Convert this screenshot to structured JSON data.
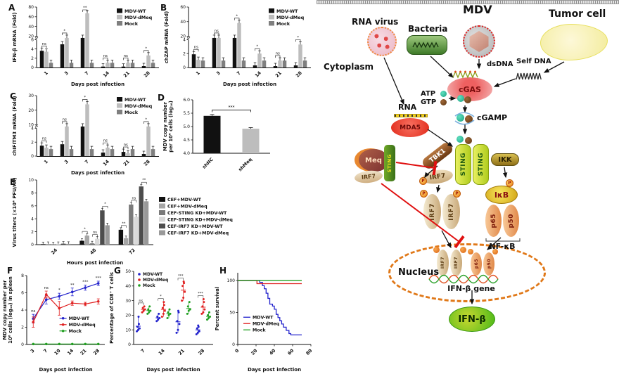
{
  "chart_data": [
    {
      "letter": "A",
      "type": "bar-broken",
      "ylabel": [
        "IFN-β mRNA (Fold)"
      ],
      "xlabel": "Days post infection",
      "categories": [
        "1",
        "3",
        "7",
        "14",
        "21",
        "28"
      ],
      "series": [
        {
          "name": "MDV-WT",
          "color": "#111111",
          "values": [
            3.6,
            5.0,
            13,
            0.2,
            0.2,
            0.3
          ]
        },
        {
          "name": "MDV-dMeq",
          "color": "#bdbdbd",
          "values": [
            3.4,
            10,
            67,
            1.0,
            1.0,
            2.6
          ]
        },
        {
          "name": "Mock",
          "color": "#7f7f7f",
          "values": [
            1,
            1,
            1,
            1,
            1,
            1
          ]
        }
      ],
      "sig": [
        "ns",
        "*",
        "**",
        "ns",
        "ns",
        "*"
      ],
      "axis_break": {
        "lower": [
          0,
          6
        ],
        "lower_ticks": [
          0,
          2,
          4,
          6
        ],
        "upper": [
          20,
          80
        ],
        "upper_ticks": [
          20,
          40,
          60,
          80
        ]
      }
    },
    {
      "letter": "B",
      "type": "bar-broken",
      "ylabel": [
        "chZAP mRNA (Fold)"
      ],
      "xlabel": "Days post infection",
      "categories": [
        "1",
        "3",
        "7",
        "14",
        "21",
        "28"
      ],
      "series": [
        {
          "name": "MDV-WT",
          "color": "#111111",
          "values": [
            1.9,
            10,
            13,
            0.3,
            0.2,
            0.3
          ]
        },
        {
          "name": "MDV-dMeq",
          "color": "#bdbdbd",
          "values": [
            1.1,
            12,
            38,
            2.0,
            1.0,
            3.3
          ]
        },
        {
          "name": "Mock",
          "color": "#7f7f7f",
          "values": [
            1,
            1,
            1,
            1,
            1,
            1
          ]
        }
      ],
      "sig": [
        "ns",
        "ns",
        "*",
        "*",
        "ns",
        "*"
      ],
      "axis_break": {
        "lower": [
          0,
          4
        ],
        "lower_ticks": [
          0,
          2,
          4
        ],
        "upper": [
          20,
          60
        ],
        "upper_ticks": [
          20,
          40,
          60
        ]
      }
    },
    {
      "letter": "C",
      "type": "bar-broken",
      "ylabel": [
        "chIFITM3 mRNA (Fold)"
      ],
      "xlabel": "Days post infection",
      "categories": [
        "1",
        "3",
        "7",
        "14",
        "21",
        "28"
      ],
      "series": [
        {
          "name": "MDV-WT",
          "color": "#111111",
          "values": [
            1.5,
            1.7,
            6.5,
            0.5,
            0.6,
            0.3
          ]
        },
        {
          "name": "MDV-dMeq",
          "color": "#bdbdbd",
          "values": [
            1.2,
            7.0,
            24,
            1.2,
            0.4,
            5.0
          ]
        },
        {
          "name": "Mock",
          "color": "#7f7f7f",
          "values": [
            1,
            1,
            1,
            1,
            1,
            1
          ]
        }
      ],
      "sig": [
        "ns",
        "ns",
        "*",
        "ns",
        "ns",
        "*"
      ],
      "axis_break": {
        "lower": [
          0,
          4
        ],
        "lower_ticks": [
          0,
          2,
          4
        ],
        "upper": [
          10,
          30
        ],
        "upper_ticks": [
          10,
          20,
          30
        ]
      }
    },
    {
      "letter": "D",
      "type": "bar",
      "ylabel": [
        "MDV copy number",
        "per 10⁶ cells (log₁₀)"
      ],
      "categories": [
        "shNC",
        "shMeq"
      ],
      "values": [
        5.4,
        4.92
      ],
      "errors": [
        0.05,
        0.04
      ],
      "colors": [
        "#111111",
        "#bdbdbd"
      ],
      "ylim": [
        4,
        6
      ],
      "yticks": [
        "4.0",
        "4.5",
        "5.0",
        "5.5",
        "6.0"
      ],
      "sig": "***"
    },
    {
      "letter": "E",
      "type": "bar-grouped",
      "ylabel": [
        "Virus titers (×10⁴ PFU/ml)"
      ],
      "xlabel": "Hours post infection",
      "categories": [
        "24",
        "48",
        "72"
      ],
      "series": [
        {
          "name": "CEF+MDV-WT",
          "color": "#111111",
          "values": [
            0.08,
            0.6,
            2.3
          ]
        },
        {
          "name": "CEF+MDV-dMeq",
          "color": "#a6a6a6",
          "values": [
            0.1,
            1.4,
            1.0
          ]
        },
        {
          "name": "CEF-STING KD+MDV-WT",
          "color": "#7a7a7a",
          "values": [
            0.06,
            0.2,
            6.2
          ]
        },
        {
          "name": "CEF-STING KD+MDV-dMeq",
          "color": "#d9d9d9",
          "values": [
            0.1,
            0.9,
            4.3
          ]
        },
        {
          "name": "CEF-IRF7 KD+MDV-WT",
          "color": "#4d4d4d",
          "values": [
            0.15,
            5.3,
            9.0
          ]
        },
        {
          "name": "CEF-IRF7 KD+MDV-dMeq",
          "color": "#999999",
          "values": [
            0.12,
            3.0,
            6.7
          ]
        }
      ],
      "sig": [
        [],
        [
          "*",
          "ns",
          "*"
        ],
        [
          "**",
          "ns",
          "**"
        ]
      ],
      "ylim": [
        0,
        10
      ],
      "yticks": [
        0,
        2,
        4,
        6,
        8,
        10
      ]
    },
    {
      "letter": "F",
      "type": "line",
      "ylabel": [
        "MDV copy number per",
        "10⁶ cells (log₁₀) in spleen"
      ],
      "xlabel": "Days post infection",
      "categories": [
        "3",
        "7",
        "10",
        "14",
        "21",
        "28"
      ],
      "series": [
        {
          "name": "MDV-WT",
          "color": "#2222cc",
          "values": [
            3.0,
            5.2,
            5.6,
            6.1,
            6.6,
            7.1
          ],
          "err": [
            0.5,
            0.5,
            0.35,
            0.45,
            0.3,
            0.25
          ]
        },
        {
          "name": "MDV-dMeq",
          "color": "#e02020",
          "values": [
            2.6,
            5.8,
            4.2,
            4.8,
            4.7,
            5.0
          ],
          "err": [
            0.6,
            0.4,
            0.8,
            0.25,
            0.2,
            0.3
          ]
        },
        {
          "name": "Mock",
          "color": "#22a022",
          "values": [
            0.05,
            0.05,
            0.05,
            0.05,
            0.05,
            0.05
          ],
          "err": [
            0,
            0,
            0,
            0,
            0,
            0
          ]
        }
      ],
      "sig": [
        "ns",
        "ns",
        "*",
        "**",
        "***",
        "***"
      ],
      "ylim": [
        0,
        8
      ],
      "yticks": [
        0,
        2,
        4,
        6,
        8
      ]
    },
    {
      "letter": "G",
      "type": "scatter",
      "ylabel": [
        "Percentage of CD8⁺ T cells"
      ],
      "xlabel": "Days post infection",
      "categories": [
        "7",
        "14",
        "21",
        "28"
      ],
      "series": [
        {
          "name": "MDV-WT",
          "color": "#2222cc",
          "points": [
            [
              9,
              10,
              11,
              12,
              14,
              19
            ],
            [
              16,
              17,
              18,
              19,
              21
            ],
            [
              8,
              10,
              14,
              16,
              22,
              23
            ],
            [
              7,
              8,
              9,
              11,
              12,
              13
            ]
          ]
        },
        {
          "name": "MDV-dMeq",
          "color": "#e02020",
          "points": [
            [
              22,
              23,
              24,
              25,
              26
            ],
            [
              19,
              21,
              23,
              25,
              27,
              29
            ],
            [
              30,
              32,
              36,
              40,
              42,
              43
            ],
            [
              21,
              22,
              24,
              26,
              29,
              31
            ]
          ]
        },
        {
          "name": "Mock",
          "color": "#22a022",
          "points": [
            [
              21,
              22,
              23,
              24,
              26
            ],
            [
              18,
              20,
              21,
              22,
              24
            ],
            [
              21,
              23,
              24,
              26,
              29
            ],
            [
              17,
              18,
              19,
              20,
              22
            ]
          ]
        }
      ],
      "sig": [
        "ns",
        "*",
        "***",
        "***"
      ],
      "ylim": [
        0,
        50
      ],
      "yticks": [
        0,
        10,
        20,
        30,
        40,
        50
      ]
    },
    {
      "letter": "H",
      "type": "survival",
      "ylabel": [
        "Percent survival"
      ],
      "xlabel": "Days post infection",
      "xlim": [
        0,
        80
      ],
      "xticks": [
        0,
        20,
        40,
        60,
        80
      ],
      "ylim": [
        0,
        112
      ],
      "yticks": [
        0,
        50,
        100
      ],
      "series": [
        {
          "name": "MDV-WT",
          "color": "#2222cc",
          "steps": [
            [
              0,
              100
            ],
            [
              24,
              100
            ],
            [
              24,
              97
            ],
            [
              27,
              97
            ],
            [
              27,
              92
            ],
            [
              29,
              92
            ],
            [
              29,
              87
            ],
            [
              31,
              87
            ],
            [
              31,
              80
            ],
            [
              33,
              80
            ],
            [
              33,
              72
            ],
            [
              35,
              72
            ],
            [
              35,
              63
            ],
            [
              38,
              63
            ],
            [
              38,
              60
            ],
            [
              40,
              60
            ],
            [
              40,
              55
            ],
            [
              42,
              55
            ],
            [
              42,
              47
            ],
            [
              44,
              47
            ],
            [
              44,
              42
            ],
            [
              46,
              42
            ],
            [
              46,
              37
            ],
            [
              48,
              37
            ],
            [
              48,
              32
            ],
            [
              50,
              32
            ],
            [
              50,
              27
            ],
            [
              53,
              27
            ],
            [
              53,
              22
            ],
            [
              56,
              22
            ],
            [
              56,
              17
            ],
            [
              58,
              17
            ],
            [
              58,
              15
            ],
            [
              70,
              15
            ]
          ]
        },
        {
          "name": "MDV-dMeq",
          "color": "#e02020",
          "steps": [
            [
              0,
              100
            ],
            [
              21,
              100
            ],
            [
              21,
              95
            ],
            [
              70,
              95
            ]
          ]
        },
        {
          "name": "Mock",
          "color": "#22a022",
          "steps": [
            [
              0,
              100
            ],
            [
              70,
              100
            ]
          ]
        }
      ]
    }
  ],
  "diagram": {
    "labels": {
      "rna_virus": "RNA virus",
      "bacteria": "Bacteria",
      "mdv": "MDV",
      "tumor_cell": "Tumor cell",
      "cytoplasm": "Cytoplasm",
      "dsdna": "dsDNA",
      "self_dna": "Self DNA",
      "cgas": "cGAS",
      "atp": "ATP",
      "gtp": "GTP",
      "rna": "RNA",
      "mda5": "MDA5",
      "cgamp": "cGAMP",
      "tbk1": "TBK1",
      "sting": "STING",
      "ikk": "IKK",
      "meq": "Meq",
      "irf7": "IRF7",
      "ikb": "IκB",
      "p65": "p65",
      "p50": "p50",
      "nfkb": "NF-κB",
      "nucleus": "Nucleus",
      "ifnb_gene": "IFN-β gene",
      "ifnb": "IFN-β",
      "p": "P"
    }
  }
}
